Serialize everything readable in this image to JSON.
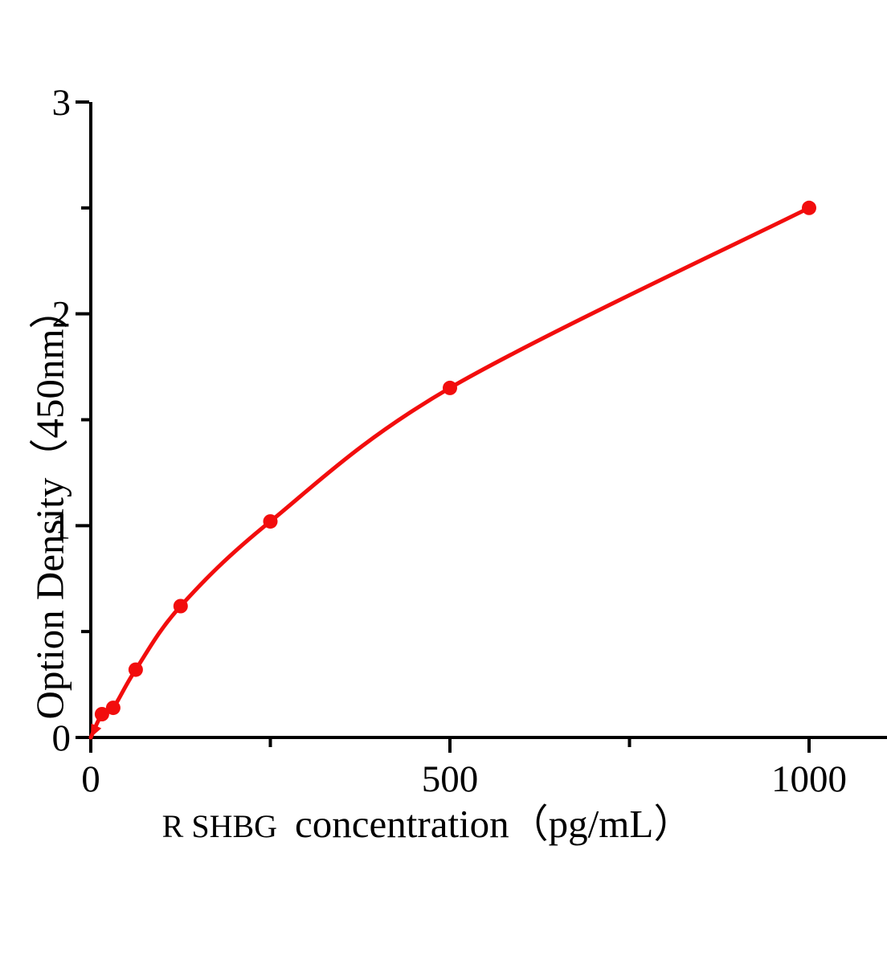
{
  "page": {
    "background": "#ffffff"
  },
  "chart_data": {
    "type": "line",
    "title": "",
    "xlabel_prefix": "R SHBG",
    "xlabel_main": "concentration（pg/mL）",
    "ylabel": "Option Density（450nm）",
    "x": [
      0,
      15.6,
      31.2,
      62.5,
      125,
      250,
      500,
      1000
    ],
    "y": [
      0,
      0.11,
      0.14,
      0.32,
      0.62,
      1.02,
      1.65,
      2.5
    ],
    "xlim": [
      0,
      1108
    ],
    "ylim": [
      0,
      3
    ],
    "x_ticks_major": [
      0,
      500,
      1000
    ],
    "x_ticks_minor": [
      250,
      750
    ],
    "y_ticks_major": [
      0,
      1,
      2,
      3
    ],
    "y_ticks_minor": [
      0.5,
      1.5,
      2.5
    ],
    "grid": false,
    "legend": null,
    "marker": "circle",
    "origin_marker": "arrowhead",
    "line_color": "#f20d0d",
    "marker_color": "#f20d0d",
    "axis_color": "#000000"
  }
}
